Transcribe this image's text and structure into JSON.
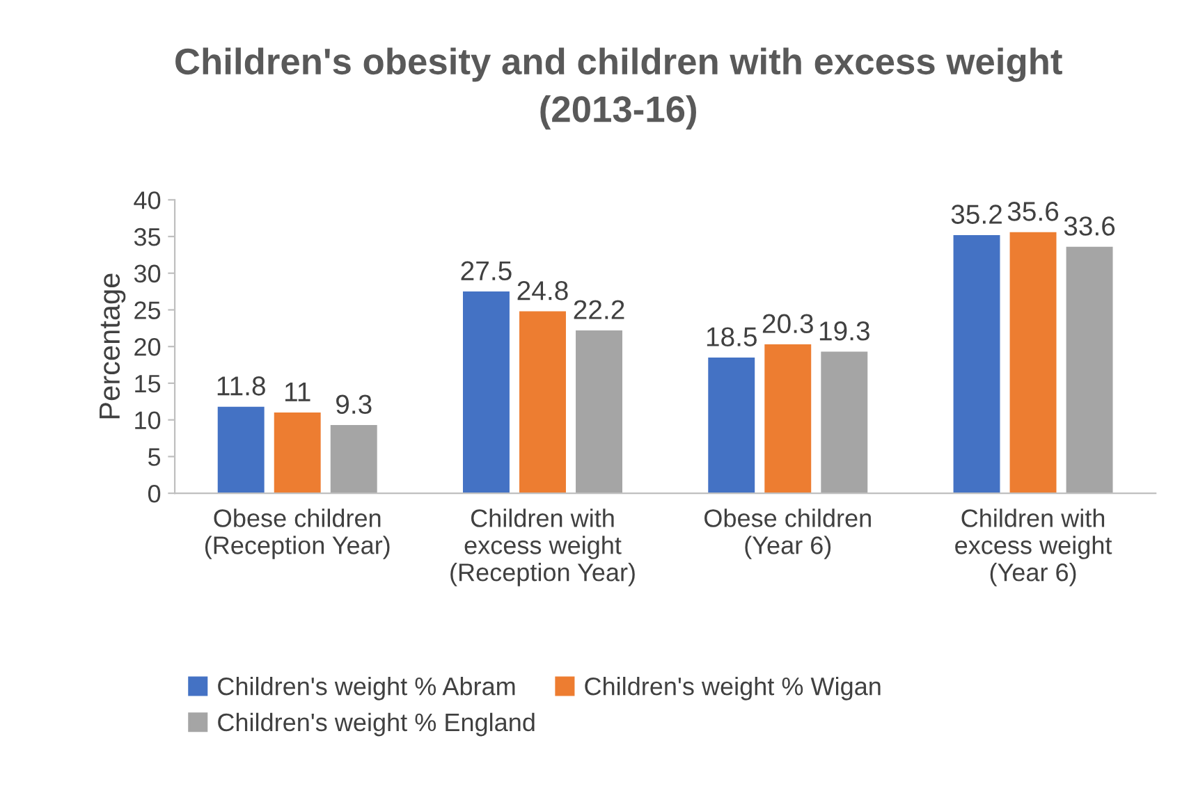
{
  "chart_data": {
    "type": "bar",
    "title": "Children's obesity and children with excess weight\n(2013-16)",
    "ylabel": "Percentage",
    "categories": [
      "Obese children\n(Reception Year)",
      "Children with\nexcess weight\n(Reception Year)",
      "Obese children\n(Year 6)",
      "Children with\nexcess weight\n(Year 6)"
    ],
    "series": [
      {
        "name": "Children's weight % Abram",
        "color": "#4472c4",
        "values": [
          11.8,
          27.5,
          18.5,
          35.2
        ]
      },
      {
        "name": "Children's weight % Wigan",
        "color": "#ed7d31",
        "values": [
          11,
          24.8,
          20.3,
          35.6
        ]
      },
      {
        "name": "Children's weight % England",
        "color": "#a5a5a5",
        "values": [
          9.3,
          22.2,
          19.3,
          33.6
        ]
      }
    ],
    "ylim": [
      0,
      40
    ],
    "yticks": [
      0,
      5,
      10,
      15,
      20,
      25,
      30,
      35,
      40
    ],
    "grid": false,
    "legend": "bottom",
    "data_labels": true
  }
}
